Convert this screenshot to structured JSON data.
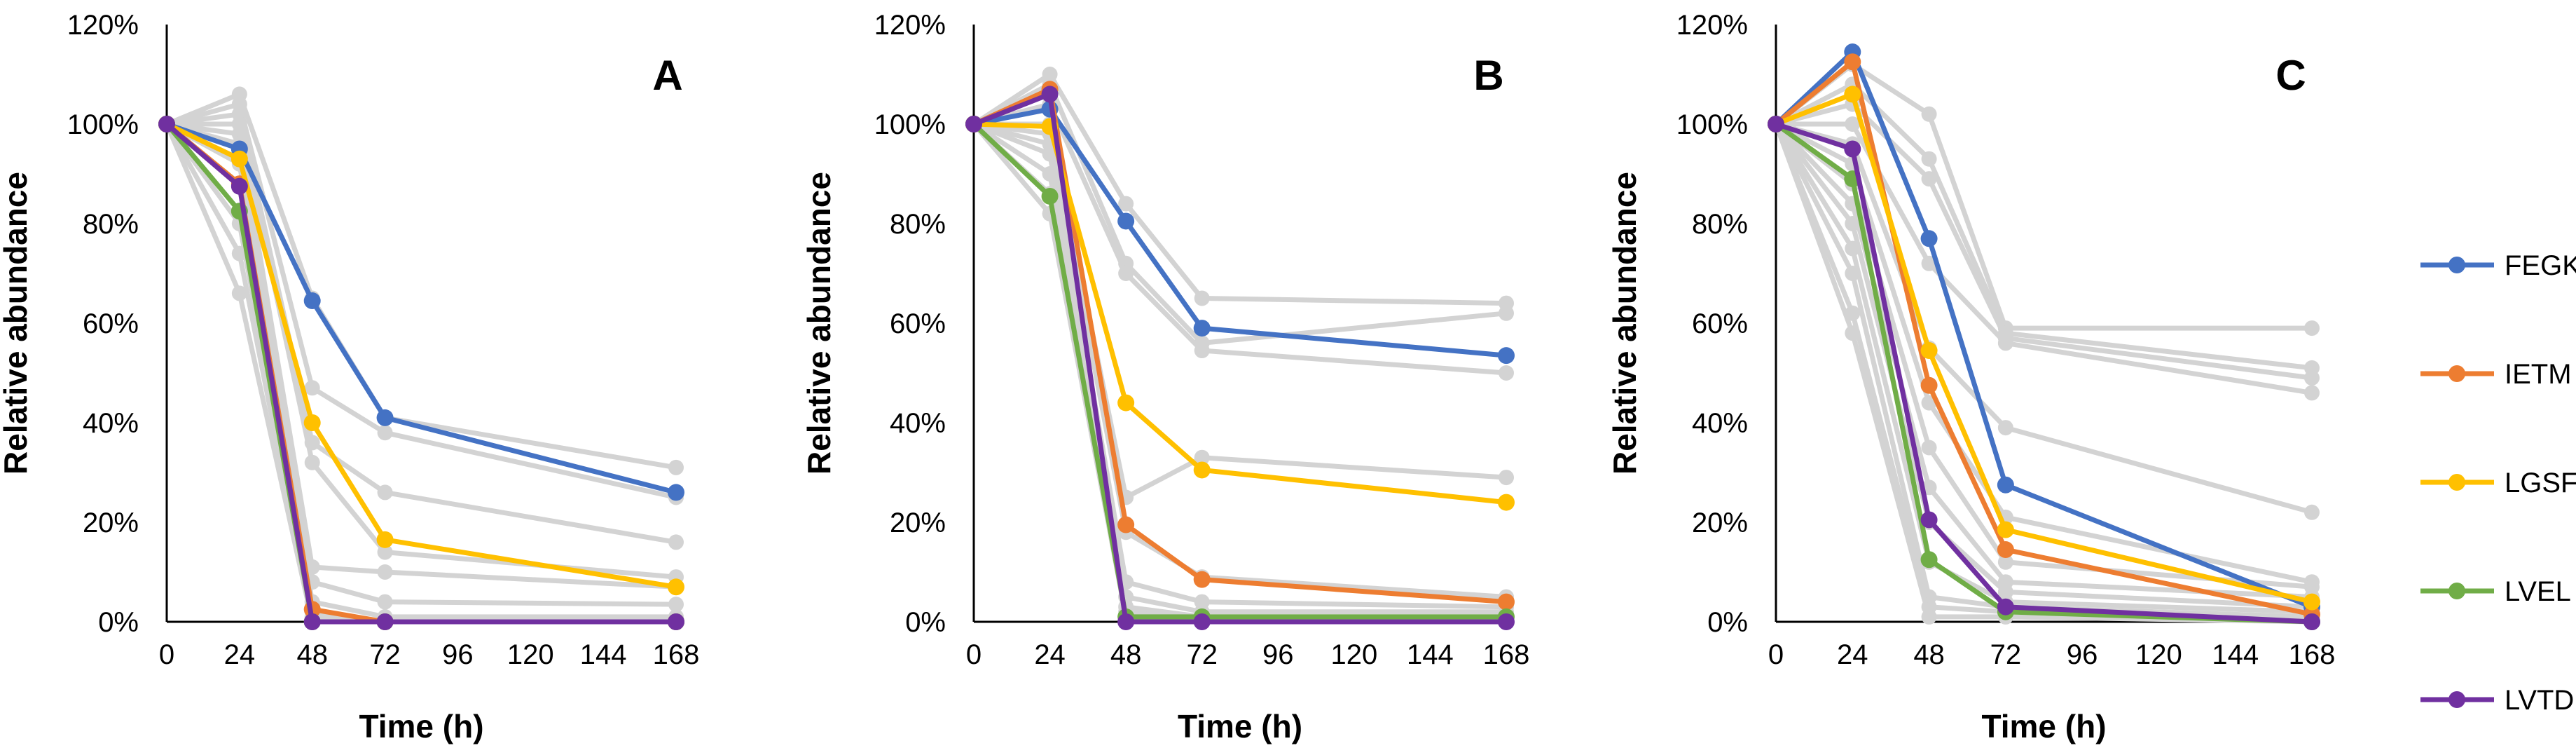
{
  "chart_data": {
    "type": "line",
    "x": [
      0,
      24,
      48,
      72,
      168
    ],
    "xticks": [
      0,
      24,
      48,
      72,
      96,
      120,
      144,
      168
    ],
    "ylim": [
      0,
      120
    ],
    "yticks": [
      "0%",
      "20%",
      "40%",
      "60%",
      "80%",
      "100%",
      "120%"
    ],
    "xlabel": "Time (h)",
    "ylabel": "Relative abundance",
    "legend": [
      "FEGK",
      "IETM",
      "LGSF",
      "LVEL",
      "LVTD"
    ],
    "colors": {
      "FEGK": "#4472C4",
      "IETM": "#ED7D31",
      "LGSF": "#FFC000",
      "LVEL": "#70AD47",
      "LVTD": "#7030A0",
      "background": "#D3D3D3"
    },
    "panels": [
      {
        "label": "A",
        "series": [
          {
            "name": "FEGK",
            "values": [
              100,
              95,
              64.5,
              41,
              26
            ]
          },
          {
            "name": "IETM",
            "values": [
              100,
              88,
              2.5,
              0,
              0
            ]
          },
          {
            "name": "LGSF",
            "values": [
              100,
              93,
              40,
              16.5,
              7
            ]
          },
          {
            "name": "LVEL",
            "values": [
              100,
              82.5,
              0,
              0,
              0
            ]
          },
          {
            "name": "LVTD",
            "values": [
              100,
              87.5,
              0,
              0,
              0
            ]
          }
        ],
        "background_series": [
          [
            100,
            106,
            65,
            41,
            31
          ],
          [
            100,
            104,
            47,
            38,
            25
          ],
          [
            100,
            102,
            36,
            26,
            16
          ],
          [
            100,
            100,
            32,
            14,
            9
          ],
          [
            100,
            98,
            11,
            10,
            7
          ],
          [
            100,
            96,
            8,
            4,
            3.5
          ],
          [
            100,
            92,
            4,
            1,
            1
          ],
          [
            100,
            88,
            2,
            0,
            0
          ],
          [
            100,
            80,
            1,
            0,
            0
          ],
          [
            100,
            74,
            0,
            0,
            0
          ],
          [
            100,
            66,
            0,
            0,
            0
          ]
        ]
      },
      {
        "label": "B",
        "series": [
          {
            "name": "FEGK",
            "values": [
              100,
              103,
              80.5,
              59,
              53.5
            ]
          },
          {
            "name": "IETM",
            "values": [
              100,
              107,
              19.5,
              8.5,
              4
            ]
          },
          {
            "name": "LGSF",
            "values": [
              100,
              99.5,
              44,
              30.5,
              24
            ]
          },
          {
            "name": "LVEL",
            "values": [
              100,
              85.5,
              1,
              1,
              1
            ]
          },
          {
            "name": "LVTD",
            "values": [
              100,
              106,
              0,
              0,
              0
            ]
          }
        ],
        "background_series": [
          [
            100,
            110,
            84,
            65,
            64
          ],
          [
            100,
            108,
            72,
            56,
            62
          ],
          [
            100,
            104,
            70,
            54.5,
            50
          ],
          [
            100,
            100,
            25,
            33,
            29
          ],
          [
            100,
            98,
            18,
            9,
            5
          ],
          [
            100,
            96,
            8,
            4,
            3
          ],
          [
            100,
            94,
            5,
            2,
            2
          ],
          [
            100,
            90,
            3,
            1,
            1
          ],
          [
            100,
            86,
            2,
            0.5,
            0.5
          ],
          [
            100,
            82,
            1,
            0,
            0
          ]
        ]
      },
      {
        "label": "C",
        "series": [
          {
            "name": "FEGK",
            "values": [
              100,
              114.5,
              77,
              27.5,
              3
            ]
          },
          {
            "name": "IETM",
            "values": [
              100,
              112.5,
              47.5,
              14.5,
              1.5
            ]
          },
          {
            "name": "LGSF",
            "values": [
              100,
              106,
              54.5,
              18.5,
              4
            ]
          },
          {
            "name": "LVEL",
            "values": [
              100,
              89,
              12.5,
              2,
              0
            ]
          },
          {
            "name": "LVTD",
            "values": [
              100,
              95,
              20.5,
              3,
              0
            ]
          }
        ],
        "background_series": [
          [
            100,
            112,
            102,
            59,
            59
          ],
          [
            100,
            108,
            93,
            58,
            51
          ],
          [
            100,
            104,
            89,
            57,
            49
          ],
          [
            100,
            100,
            72,
            56,
            46
          ],
          [
            100,
            96,
            55,
            39,
            22
          ],
          [
            100,
            92,
            44,
            21,
            8
          ],
          [
            100,
            88,
            35,
            12,
            7
          ],
          [
            100,
            84,
            27,
            8,
            5
          ],
          [
            100,
            80,
            20,
            6,
            3
          ],
          [
            100,
            75,
            12,
            4,
            2
          ],
          [
            100,
            70,
            5,
            3,
            1
          ],
          [
            100,
            62,
            3,
            2,
            1
          ],
          [
            100,
            58,
            1,
            1,
            0
          ]
        ]
      }
    ]
  }
}
